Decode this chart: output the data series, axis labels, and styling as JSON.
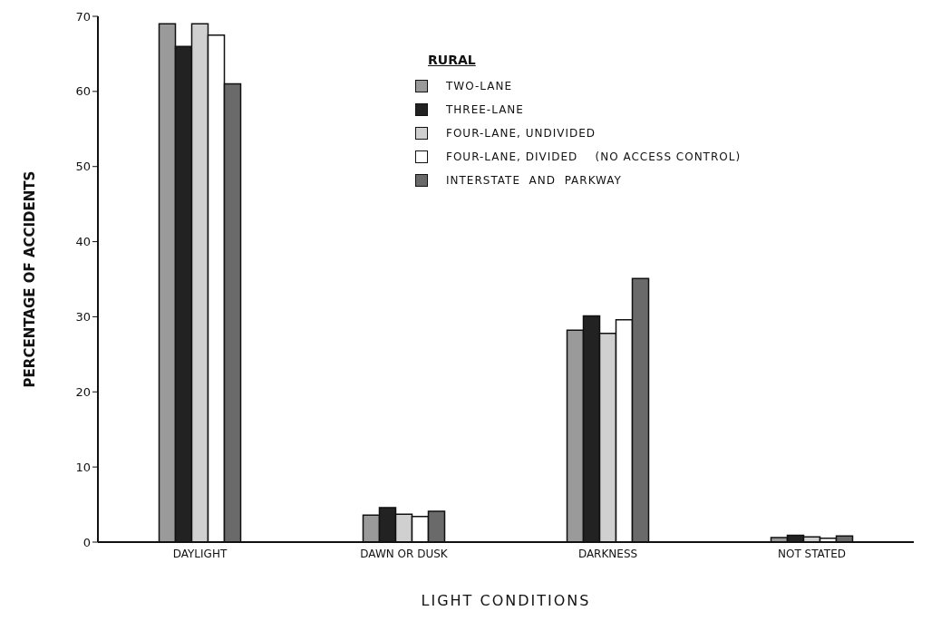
{
  "chart_data": {
    "type": "bar",
    "xlabel": "LIGHT CONDITIONS",
    "ylabel": "PERCENTAGE OF ACCIDENTS",
    "legend_title": "RURAL",
    "categories": [
      "DAYLIGHT",
      "DAWN OR DUSK",
      "DARKNESS",
      "NOT STATED"
    ],
    "series": [
      {
        "name": "TWO-LANE",
        "color": "#9a9a9a",
        "values": [
          69,
          3.6,
          28.2,
          0.6
        ]
      },
      {
        "name": "THREE-LANE",
        "color": "#222222",
        "values": [
          66,
          4.6,
          30.1,
          0.9
        ]
      },
      {
        "name": "FOUR-LANE, UNDIVIDED",
        "color": "#d0d0d0",
        "values": [
          69,
          3.7,
          27.8,
          0.7
        ]
      },
      {
        "name": "FOUR-LANE, DIVIDED    (NO ACCESS CONTROL)",
        "color": "#ffffff",
        "values": [
          67.5,
          3.4,
          29.6,
          0.5
        ]
      },
      {
        "name": "INTERSTATE  AND  PARKWAY",
        "color": "#6a6a6a",
        "values": [
          61,
          4.1,
          35.1,
          0.8
        ]
      }
    ],
    "ylim": [
      0,
      70
    ],
    "yticks": [
      0,
      10,
      20,
      30,
      40,
      50,
      60,
      70
    ],
    "grid": false,
    "legend": "top"
  }
}
